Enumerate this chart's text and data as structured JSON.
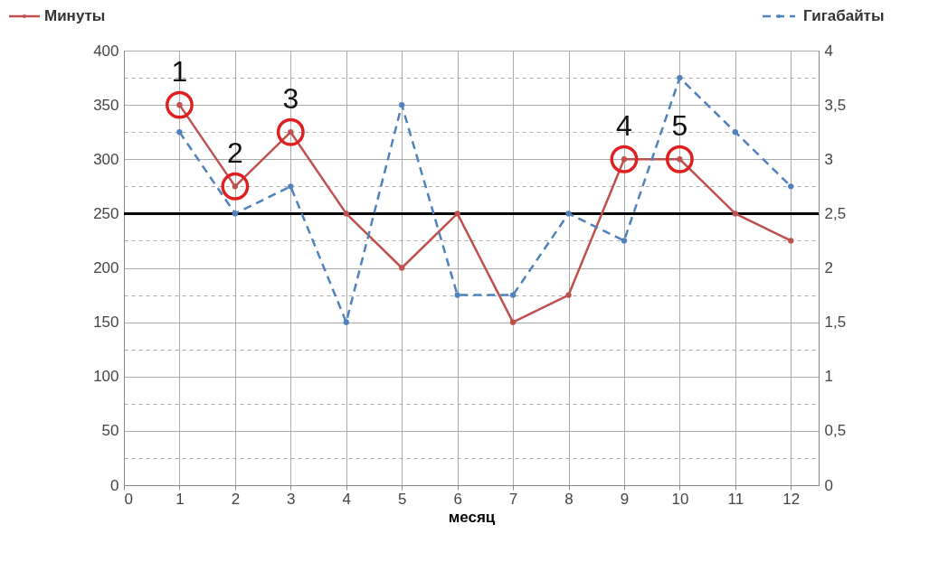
{
  "chart_data": {
    "type": "line",
    "x": [
      1,
      2,
      3,
      4,
      5,
      6,
      7,
      8,
      9,
      10,
      11,
      12
    ],
    "series": [
      {
        "name": "Минуты",
        "color": "#c0504d",
        "line_style": "solid",
        "values": [
          350,
          275,
          325,
          250,
          200,
          250,
          150,
          175,
          300,
          300,
          250,
          225
        ]
      },
      {
        "name": "Гигабайты",
        "color": "#4f81bd",
        "line_style": "dashed",
        "axis": "y2",
        "values": [
          3.25,
          2.5,
          2.75,
          1.5,
          3.5,
          1.75,
          1.75,
          2.5,
          2.25,
          3.75,
          3.25,
          2.75
        ]
      }
    ],
    "xlabel": "месяц",
    "xlim": [
      0,
      12.5
    ],
    "xticks": [
      0,
      1,
      2,
      3,
      4,
      5,
      6,
      7,
      8,
      9,
      10,
      11,
      12
    ],
    "ylim": [
      0,
      400
    ],
    "yticks": [
      0,
      {
        "value": 25,
        "label": null
      },
      50,
      {
        "value": 75,
        "label": null
      },
      100,
      {
        "value": 125,
        "label": null
      },
      150,
      {
        "value": 175,
        "label": null
      },
      200,
      {
        "value": 225,
        "label": null
      },
      250,
      {
        "value": 275,
        "label": null
      },
      300,
      {
        "value": 325,
        "label": null
      },
      350,
      {
        "value": 375,
        "label": null
      },
      400
    ],
    "y2lim": [
      0,
      4
    ],
    "y2ticks": [
      0,
      {
        "value": 0.5,
        "label": "0,5"
      },
      1,
      {
        "value": 1.5,
        "label": "1,5"
      },
      2,
      {
        "value": 2.5,
        "label": "2,5"
      },
      3,
      {
        "value": 3.5,
        "label": "3,5"
      },
      4
    ],
    "ref_lines": [
      {
        "axis": "y",
        "value": 250,
        "color": "#000000"
      }
    ],
    "annotations": [
      {
        "text": "1",
        "x": 1,
        "y": 350
      },
      {
        "text": "2",
        "x": 2,
        "y": 275
      },
      {
        "text": "3",
        "x": 3,
        "y": 325
      },
      {
        "text": "4",
        "x": 9,
        "y": 300
      },
      {
        "text": "5",
        "x": 10,
        "y": 300
      }
    ],
    "grid": true,
    "legend": "top",
    "marker": "circle"
  }
}
